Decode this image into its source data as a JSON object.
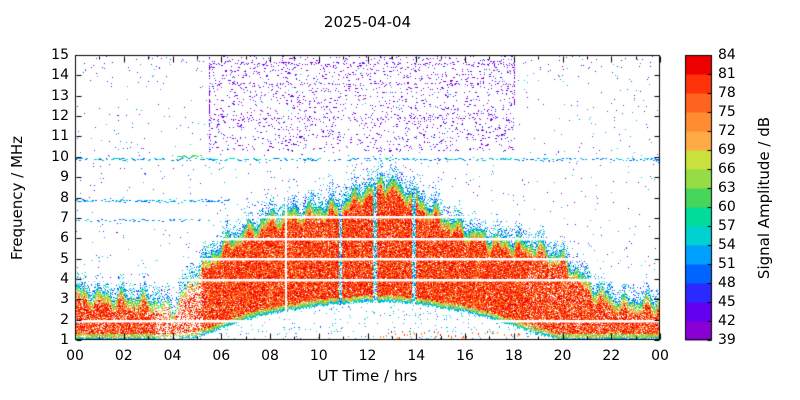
{
  "chart_data": {
    "type": "heatmap",
    "title": "2025-04-04",
    "xlabel": "UT Time / hrs",
    "ylabel": "Frequency / MHz",
    "colorbar_label": "Signal Amplitude / dB",
    "x_range_hours": [
      0,
      24
    ],
    "x_tick_labels": [
      "00",
      "02",
      "04",
      "06",
      "08",
      "10",
      "12",
      "14",
      "16",
      "18",
      "20",
      "22",
      "00"
    ],
    "y_range_mhz": [
      1,
      15
    ],
    "y_tick_labels": [
      "1",
      "2",
      "3",
      "4",
      "5",
      "6",
      "7",
      "8",
      "9",
      "10",
      "11",
      "12",
      "13",
      "14",
      "15"
    ],
    "colorbar_range_db": [
      39,
      84
    ],
    "colorbar_tick_labels": [
      "39",
      "42",
      "45",
      "48",
      "51",
      "54",
      "57",
      "60",
      "63",
      "66",
      "69",
      "72",
      "75",
      "78",
      "81",
      "84"
    ],
    "colormap_bottom_to_top": [
      "#8a00d4",
      "#6400f0",
      "#2a2aff",
      "#0064ff",
      "#00a0ff",
      "#00d2d2",
      "#00dc9b",
      "#46d65a",
      "#96dc46",
      "#c8e13c",
      "#ffaa46",
      "#ff8c32",
      "#ff641e",
      "#ff320a",
      "#ee0000"
    ],
    "spectrogram": {
      "echo_top_mhz_by_hour": [
        3.6,
        3.4,
        3.3,
        3.2,
        2.7,
        4.5,
        5.8,
        6.6,
        7.2,
        7.5,
        7.6,
        7.9,
        8.6,
        8.9,
        8.2,
        7.3,
        6.6,
        6.2,
        6.0,
        5.8,
        5.2,
        4.0,
        3.2,
        3.0,
        3.1
      ],
      "echo_bottom_mhz_by_hour": [
        1.0,
        1.0,
        1.0,
        1.0,
        1.0,
        1.1,
        1.6,
        2.0,
        2.3,
        2.5,
        2.7,
        2.8,
        2.9,
        2.9,
        2.8,
        2.6,
        2.4,
        2.1,
        1.7,
        1.3,
        1.0,
        1.0,
        1.0,
        1.0,
        1.0
      ],
      "peak_spike": {
        "hour": 12.55,
        "top_mhz": 9.3
      },
      "quiet_white_bands_mhz": [
        1.95,
        3.95,
        5.0,
        5.95,
        7.05
      ],
      "white_gap_hours": [
        8.65
      ],
      "weak_echo_streak_hours": [
        10.9,
        12.3,
        13.9
      ],
      "sparse_echo_interval_hours": [
        3.3,
        5.2
      ],
      "rfi_speckle_region": {
        "t0_hours": 5.5,
        "t1_hours": 18.0,
        "f0_mhz": 10.3,
        "f1_mhz": 15.0,
        "db_min": 39,
        "db_max": 46
      },
      "rfi_dense_rows_mhz": [
        11.9,
        13.6,
        14.6
      ],
      "noise_lines": [
        {
          "f_mhz": 9.9,
          "t0": 0,
          "t1": 24,
          "density": 0.45,
          "db_min": 48,
          "db_max": 58
        },
        {
          "f_mhz": 7.85,
          "t0": 0,
          "t1": 6.5,
          "density": 0.5,
          "db_min": 48,
          "db_max": 56
        },
        {
          "f_mhz": 6.9,
          "t0": 0,
          "t1": 5.5,
          "density": 0.3,
          "db_min": 48,
          "db_max": 56
        },
        {
          "f_mhz": 5.0,
          "t0": 0,
          "t1": 4.2,
          "density": 0.3,
          "db_min": 48,
          "db_max": 56
        },
        {
          "f_mhz": 10.05,
          "t0": 4.2,
          "t1": 5.2,
          "density": 0.8,
          "db_min": 57,
          "db_max": 66
        }
      ]
    }
  }
}
